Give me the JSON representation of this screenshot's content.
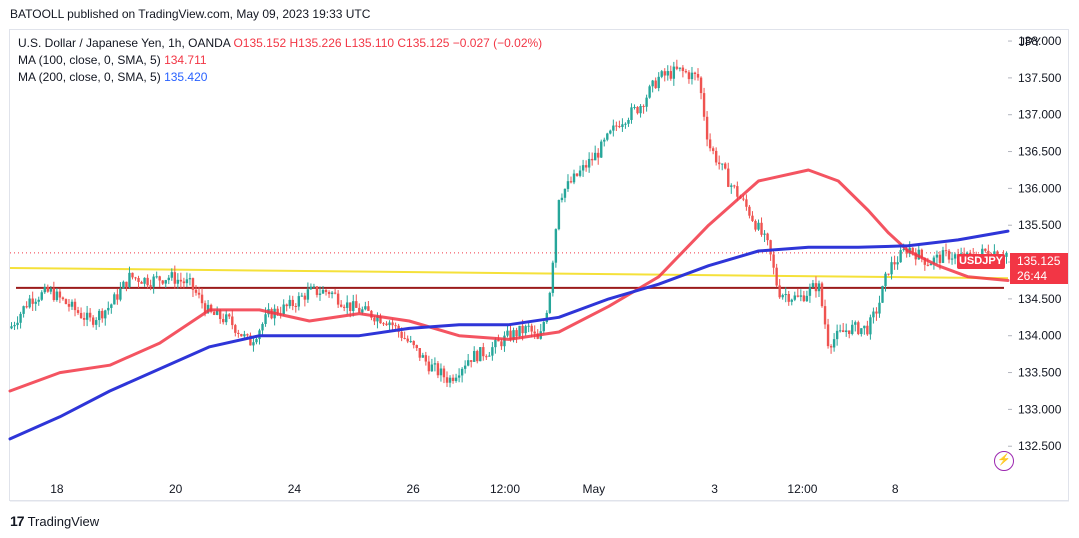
{
  "publisher": "BATOOLL published on TradingView.com, May 09, 2023 19:33 UTC",
  "legend": {
    "symbol": "U.S. Dollar / Japanese Yen, 1h, OANDA",
    "ohlc": "O135.152  H135.226  L135.110  C135.125  −0.027 (−0.02%)",
    "ma100_label": "MA (100, close, 0, SMA, 5)",
    "ma100_value": "134.711",
    "ma200_label": "MA (200, close, 0, SMA, 5)",
    "ma200_value": "135.420"
  },
  "currency": "JPY",
  "ticker": "USDJPY",
  "last_price": "135.125",
  "countdown": "26:44",
  "footer": {
    "brand": "TradingView",
    "logo_glyph": "17"
  },
  "bolt_icon": "lightning-icon",
  "colors": {
    "up": "#26a69a",
    "down": "#ef5350",
    "ma100": "#f23645",
    "ma200": "#2e35d8",
    "yellow_line": "#f5e13a",
    "support_line": "#9b1b1b"
  },
  "chart_data": {
    "type": "candlestick",
    "ylim": [
      132.15,
      138.15
    ],
    "y_ticks": [
      "138.000",
      "137.500",
      "137.000",
      "136.500",
      "136.000",
      "135.500",
      "135.000",
      "134.500",
      "134.000",
      "133.500",
      "133.000",
      "132.500"
    ],
    "y_tick_values": [
      138.0,
      137.5,
      137.0,
      136.5,
      136.0,
      135.5,
      135.0,
      134.5,
      134.0,
      133.5,
      133.0,
      132.5
    ],
    "x_ticks": [
      "18",
      "20",
      "24",
      "26",
      "12:00",
      "May",
      "3",
      "12:00",
      "8"
    ],
    "x_tick_positions": [
      0.047,
      0.166,
      0.285,
      0.404,
      0.496,
      0.585,
      0.706,
      0.794,
      0.887
    ],
    "horizontal_lines": [
      {
        "name": "support",
        "value": 134.65
      },
      {
        "name": "last-price",
        "value": 135.125
      }
    ],
    "trend_line": {
      "start": [
        0,
        134.92
      ],
      "end": [
        1,
        134.78
      ]
    },
    "price_path": [
      [
        0.0,
        134.1
      ],
      [
        0.02,
        134.5
      ],
      [
        0.04,
        134.6
      ],
      [
        0.06,
        134.4
      ],
      [
        0.08,
        134.2
      ],
      [
        0.1,
        134.4
      ],
      [
        0.12,
        134.8
      ],
      [
        0.14,
        134.75
      ],
      [
        0.16,
        134.8
      ],
      [
        0.18,
        134.7
      ],
      [
        0.2,
        134.3
      ],
      [
        0.22,
        134.2
      ],
      [
        0.24,
        133.9
      ],
      [
        0.26,
        134.3
      ],
      [
        0.28,
        134.4
      ],
      [
        0.3,
        134.6
      ],
      [
        0.32,
        134.6
      ],
      [
        0.34,
        134.4
      ],
      [
        0.36,
        134.3
      ],
      [
        0.38,
        134.2
      ],
      [
        0.4,
        133.9
      ],
      [
        0.42,
        133.6
      ],
      [
        0.44,
        133.4
      ],
      [
        0.46,
        133.7
      ],
      [
        0.48,
        133.8
      ],
      [
        0.5,
        134.0
      ],
      [
        0.52,
        134.1
      ],
      [
        0.53,
        133.9
      ],
      [
        0.54,
        134.5
      ],
      [
        0.55,
        135.9
      ],
      [
        0.57,
        136.2
      ],
      [
        0.59,
        136.5
      ],
      [
        0.61,
        136.9
      ],
      [
        0.63,
        137.1
      ],
      [
        0.65,
        137.5
      ],
      [
        0.67,
        137.6
      ],
      [
        0.69,
        137.5
      ],
      [
        0.7,
        136.6
      ],
      [
        0.72,
        136.1
      ],
      [
        0.74,
        135.7
      ],
      [
        0.76,
        135.2
      ],
      [
        0.77,
        134.6
      ],
      [
        0.79,
        134.5
      ],
      [
        0.81,
        134.7
      ],
      [
        0.82,
        133.9
      ],
      [
        0.84,
        134.1
      ],
      [
        0.86,
        134.1
      ],
      [
        0.87,
        134.4
      ],
      [
        0.88,
        134.9
      ],
      [
        0.9,
        135.2
      ],
      [
        0.92,
        135.0
      ],
      [
        0.94,
        135.1
      ],
      [
        0.96,
        135.05
      ],
      [
        0.98,
        135.15
      ],
      [
        1.0,
        135.12
      ]
    ],
    "series": [
      {
        "name": "MA (100, close, 0, SMA, 5)",
        "points": [
          [
            0.0,
            133.25
          ],
          [
            0.05,
            133.5
          ],
          [
            0.1,
            133.6
          ],
          [
            0.15,
            133.9
          ],
          [
            0.2,
            134.35
          ],
          [
            0.25,
            134.35
          ],
          [
            0.3,
            134.2
          ],
          [
            0.35,
            134.3
          ],
          [
            0.4,
            134.2
          ],
          [
            0.45,
            134.0
          ],
          [
            0.5,
            133.95
          ],
          [
            0.55,
            134.05
          ],
          [
            0.6,
            134.4
          ],
          [
            0.65,
            134.8
          ],
          [
            0.7,
            135.5
          ],
          [
            0.75,
            136.1
          ],
          [
            0.8,
            136.25
          ],
          [
            0.83,
            136.1
          ],
          [
            0.86,
            135.7
          ],
          [
            0.88,
            135.4
          ],
          [
            0.9,
            135.15
          ],
          [
            0.93,
            134.95
          ],
          [
            0.96,
            134.8
          ],
          [
            1.0,
            134.75
          ]
        ]
      },
      {
        "name": "MA (200, close, 0, SMA, 5)",
        "points": [
          [
            0.0,
            132.6
          ],
          [
            0.05,
            132.9
          ],
          [
            0.1,
            133.25
          ],
          [
            0.15,
            133.55
          ],
          [
            0.2,
            133.85
          ],
          [
            0.25,
            134.0
          ],
          [
            0.3,
            134.0
          ],
          [
            0.35,
            134.0
          ],
          [
            0.4,
            134.1
          ],
          [
            0.45,
            134.15
          ],
          [
            0.5,
            134.15
          ],
          [
            0.55,
            134.25
          ],
          [
            0.6,
            134.5
          ],
          [
            0.65,
            134.7
          ],
          [
            0.7,
            134.95
          ],
          [
            0.75,
            135.15
          ],
          [
            0.8,
            135.2
          ],
          [
            0.85,
            135.2
          ],
          [
            0.9,
            135.22
          ],
          [
            0.95,
            135.3
          ],
          [
            1.0,
            135.42
          ]
        ]
      }
    ]
  }
}
